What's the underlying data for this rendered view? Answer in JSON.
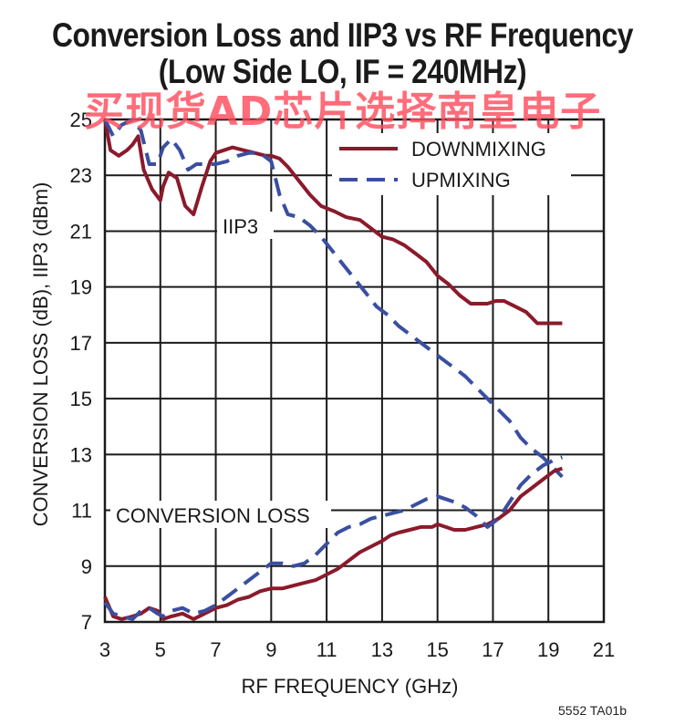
{
  "title_line1": "Conversion Loss and IIP3 vs RF Frequency",
  "title_line2": "(Low Side LO, IF = 240MHz)",
  "watermark": "买现货AD芯片选择南皇电子",
  "figure_id": "5552 TA01b",
  "colors": {
    "downmixing": "#8b1a2b",
    "upmixing": "#3a4fa0",
    "grid": "#1a1a1a"
  },
  "chart_data": {
    "type": "line",
    "title": "Conversion Loss and IIP3 vs RF Frequency",
    "subtitle": "(Low Side LO, IF = 240MHz)",
    "xlabel": "RF FREQUENCY (GHz)",
    "ylabel": "CONVERSION LOSS (dB), IIP3 (dBm)",
    "xlim": [
      3,
      21
    ],
    "ylim": [
      7,
      25
    ],
    "xticks": [
      3,
      5,
      7,
      9,
      11,
      13,
      15,
      17,
      19,
      21
    ],
    "yticks": [
      7,
      9,
      11,
      13,
      15,
      17,
      19,
      21,
      23,
      25
    ],
    "grid": true,
    "legend_position": "top-right",
    "annotations": [
      "IIP3",
      "CONVERSION LOSS"
    ],
    "series": [
      {
        "name": "DOWNMIXING",
        "group": "IIP3",
        "style": "solid",
        "x": [
          3,
          3.2,
          3.5,
          3.8,
          4.0,
          4.2,
          4.4,
          4.7,
          5.0,
          5.1,
          5.3,
          5.6,
          5.9,
          6.2,
          6.5,
          6.8,
          7.0,
          7.3,
          7.6,
          8.0,
          8.4,
          8.8,
          9.0,
          9.3,
          9.6,
          10.0,
          10.4,
          10.8,
          11.3,
          11.7,
          12.2,
          12.6,
          13.0,
          13.4,
          13.8,
          14.2,
          14.6,
          15.0,
          15.4,
          15.8,
          16.2,
          16.5,
          16.8,
          17.1,
          17.4,
          17.8,
          18.2,
          18.6,
          19.0,
          19.5
        ],
        "y": [
          25.0,
          23.9,
          23.7,
          23.9,
          24.1,
          24.4,
          23.2,
          22.5,
          22.1,
          22.6,
          23.1,
          22.9,
          21.9,
          21.6,
          22.6,
          23.5,
          23.8,
          23.9,
          24.0,
          23.9,
          23.8,
          23.7,
          23.7,
          23.6,
          23.3,
          22.8,
          22.3,
          21.9,
          21.7,
          21.5,
          21.4,
          21.1,
          20.8,
          20.7,
          20.5,
          20.2,
          19.9,
          19.4,
          19.1,
          18.7,
          18.4,
          18.4,
          18.4,
          18.5,
          18.5,
          18.3,
          18.1,
          17.7,
          17.7,
          17.7
        ]
      },
      {
        "name": "UPMIXING",
        "group": "IIP3",
        "style": "dashed",
        "x": [
          3,
          3.3,
          3.6,
          4.0,
          4.3,
          4.6,
          4.9,
          5.1,
          5.4,
          5.7,
          6.0,
          6.3,
          6.7,
          7.0,
          7.4,
          7.8,
          8.2,
          8.6,
          9.0,
          9.3,
          9.6,
          10.0,
          10.4,
          10.8,
          11.2,
          11.6,
          12.0,
          12.4,
          12.8,
          13.2,
          13.6,
          14.0,
          14.4,
          14.8,
          15.2,
          15.6,
          16.0,
          16.4,
          16.8,
          17.2,
          17.6,
          18.0,
          18.4,
          18.8,
          19.2,
          19.5
        ],
        "y": [
          25.0,
          24.4,
          24.8,
          25.0,
          24.6,
          23.4,
          23.4,
          24.0,
          24.3,
          23.9,
          23.2,
          23.4,
          23.4,
          23.4,
          23.5,
          23.7,
          23.8,
          23.8,
          23.5,
          22.3,
          21.6,
          21.5,
          21.2,
          20.8,
          20.3,
          19.8,
          19.3,
          18.8,
          18.3,
          18.0,
          17.6,
          17.3,
          17.0,
          16.7,
          16.4,
          16.1,
          15.8,
          15.4,
          15.0,
          14.6,
          14.2,
          13.6,
          13.2,
          12.9,
          12.5,
          12.2
        ]
      },
      {
        "name": "DOWNMIXING",
        "group": "CONVERSION LOSS",
        "style": "solid",
        "x": [
          3,
          3.3,
          3.6,
          4.0,
          4.3,
          4.6,
          4.9,
          5.1,
          5.4,
          5.8,
          6.2,
          6.6,
          7.0,
          7.4,
          7.8,
          8.2,
          8.6,
          9.0,
          9.4,
          9.8,
          10.2,
          10.6,
          11.0,
          11.4,
          11.8,
          12.2,
          12.6,
          13.0,
          13.3,
          13.6,
          14.0,
          14.4,
          14.8,
          15.0,
          15.3,
          15.6,
          16.0,
          16.4,
          16.8,
          17.2,
          17.6,
          18.0,
          18.4,
          18.8,
          19.2,
          19.5
        ],
        "y": [
          7.9,
          7.2,
          7.1,
          7.2,
          7.3,
          7.5,
          7.4,
          7.1,
          7.2,
          7.3,
          7.1,
          7.3,
          7.5,
          7.6,
          7.8,
          7.9,
          8.1,
          8.2,
          8.2,
          8.3,
          8.4,
          8.5,
          8.7,
          8.9,
          9.2,
          9.5,
          9.7,
          9.9,
          10.1,
          10.2,
          10.3,
          10.4,
          10.4,
          10.5,
          10.4,
          10.3,
          10.3,
          10.4,
          10.5,
          10.7,
          11.0,
          11.5,
          11.8,
          12.1,
          12.4,
          12.5
        ]
      },
      {
        "name": "UPMIXING",
        "group": "CONVERSION LOSS",
        "style": "dashed",
        "x": [
          3,
          3.3,
          3.6,
          4.0,
          4.3,
          4.6,
          4.9,
          5.1,
          5.4,
          5.8,
          6.2,
          6.6,
          7.0,
          7.4,
          7.8,
          8.2,
          8.6,
          9.0,
          9.4,
          9.8,
          10.2,
          10.6,
          11.0,
          11.4,
          11.8,
          12.2,
          12.6,
          13.0,
          13.4,
          13.8,
          14.2,
          14.6,
          15.0,
          15.3,
          15.6,
          16.0,
          16.4,
          16.8,
          17.2,
          17.6,
          18.0,
          18.4,
          18.8,
          19.2,
          19.5
        ],
        "y": [
          7.7,
          7.3,
          7.2,
          7.1,
          7.4,
          7.5,
          7.3,
          7.2,
          7.4,
          7.5,
          7.3,
          7.4,
          7.6,
          7.9,
          8.2,
          8.5,
          8.8,
          9.1,
          9.1,
          9.0,
          9.1,
          9.4,
          9.8,
          10.2,
          10.4,
          10.5,
          10.7,
          10.8,
          10.9,
          11.0,
          11.2,
          11.4,
          11.5,
          11.4,
          11.3,
          11.1,
          10.8,
          10.4,
          10.7,
          11.3,
          11.9,
          12.3,
          12.6,
          12.8,
          12.9
        ]
      }
    ]
  }
}
